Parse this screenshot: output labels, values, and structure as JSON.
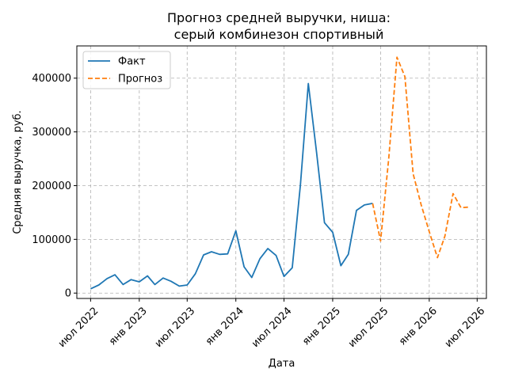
{
  "chart_data": {
    "type": "line",
    "title": "Прогноз средней выручки, ниша:\nсерый комбинезон спортивный",
    "xlabel": "Дата",
    "ylabel": "Средняя выручка, руб.",
    "x_type": "date",
    "xlim": [
      "2022-05-10",
      "2026-08-05"
    ],
    "ylim": [
      -10000,
      460000
    ],
    "grid": true,
    "grid_style": "dashed",
    "legend_position": "top-left",
    "x_ticks": [
      {
        "date": "2022-07-01",
        "label": "июл 2022"
      },
      {
        "date": "2023-01-01",
        "label": "янв 2023"
      },
      {
        "date": "2023-07-01",
        "label": "июл 2023"
      },
      {
        "date": "2024-01-01",
        "label": "янв 2024"
      },
      {
        "date": "2024-07-01",
        "label": "июл 2024"
      },
      {
        "date": "2025-01-01",
        "label": "янв 2025"
      },
      {
        "date": "2025-07-01",
        "label": "июл 2025"
      },
      {
        "date": "2026-01-01",
        "label": "янв 2026"
      },
      {
        "date": "2026-07-01",
        "label": "июл 2026"
      }
    ],
    "y_ticks": [
      {
        "value": 0,
        "label": "0"
      },
      {
        "value": 100000,
        "label": "100000"
      },
      {
        "value": 200000,
        "label": "200000"
      },
      {
        "value": 300000,
        "label": "300000"
      },
      {
        "value": 400000,
        "label": "400000"
      }
    ],
    "series": [
      {
        "name": "Факт",
        "color": "#1f77b4",
        "style": "solid",
        "points": [
          {
            "x": "2022-07-01",
            "y": 8000
          },
          {
            "x": "2022-08-01",
            "y": 15000
          },
          {
            "x": "2022-09-01",
            "y": 27000
          },
          {
            "x": "2022-10-01",
            "y": 34000
          },
          {
            "x": "2022-11-01",
            "y": 16000
          },
          {
            "x": "2022-12-01",
            "y": 25000
          },
          {
            "x": "2023-01-01",
            "y": 21000
          },
          {
            "x": "2023-02-01",
            "y": 32000
          },
          {
            "x": "2023-03-01",
            "y": 16000
          },
          {
            "x": "2023-04-01",
            "y": 28000
          },
          {
            "x": "2023-05-01",
            "y": 22000
          },
          {
            "x": "2023-06-01",
            "y": 13000
          },
          {
            "x": "2023-07-01",
            "y": 15000
          },
          {
            "x": "2023-08-01",
            "y": 36000
          },
          {
            "x": "2023-09-01",
            "y": 71000
          },
          {
            "x": "2023-10-01",
            "y": 77000
          },
          {
            "x": "2023-11-01",
            "y": 72000
          },
          {
            "x": "2023-12-01",
            "y": 73000
          },
          {
            "x": "2024-01-01",
            "y": 116000
          },
          {
            "x": "2024-02-01",
            "y": 49000
          },
          {
            "x": "2024-03-01",
            "y": 29000
          },
          {
            "x": "2024-04-01",
            "y": 64000
          },
          {
            "x": "2024-05-01",
            "y": 83000
          },
          {
            "x": "2024-06-01",
            "y": 70000
          },
          {
            "x": "2024-07-01",
            "y": 31000
          },
          {
            "x": "2024-08-01",
            "y": 47000
          },
          {
            "x": "2024-09-01",
            "y": 201000
          },
          {
            "x": "2024-10-01",
            "y": 390000
          },
          {
            "x": "2024-11-01",
            "y": 262000
          },
          {
            "x": "2024-12-01",
            "y": 131000
          },
          {
            "x": "2025-01-01",
            "y": 113000
          },
          {
            "x": "2025-02-01",
            "y": 51000
          },
          {
            "x": "2025-03-01",
            "y": 72000
          },
          {
            "x": "2025-04-01",
            "y": 154000
          },
          {
            "x": "2025-05-01",
            "y": 164000
          },
          {
            "x": "2025-06-01",
            "y": 167000
          }
        ]
      },
      {
        "name": "Прогноз",
        "color": "#ff7f0e",
        "style": "dashed",
        "points": [
          {
            "x": "2025-06-01",
            "y": 167000
          },
          {
            "x": "2025-07-01",
            "y": 97000
          },
          {
            "x": "2025-08-01",
            "y": 252000
          },
          {
            "x": "2025-09-01",
            "y": 439000
          },
          {
            "x": "2025-10-01",
            "y": 403000
          },
          {
            "x": "2025-11-01",
            "y": 222000
          },
          {
            "x": "2025-12-01",
            "y": 165000
          },
          {
            "x": "2026-01-01",
            "y": 114000
          },
          {
            "x": "2026-02-01",
            "y": 66000
          },
          {
            "x": "2026-03-01",
            "y": 106000
          },
          {
            "x": "2026-04-01",
            "y": 185000
          },
          {
            "x": "2026-05-01",
            "y": 159000
          },
          {
            "x": "2026-06-01",
            "y": 160000
          }
        ]
      }
    ]
  }
}
